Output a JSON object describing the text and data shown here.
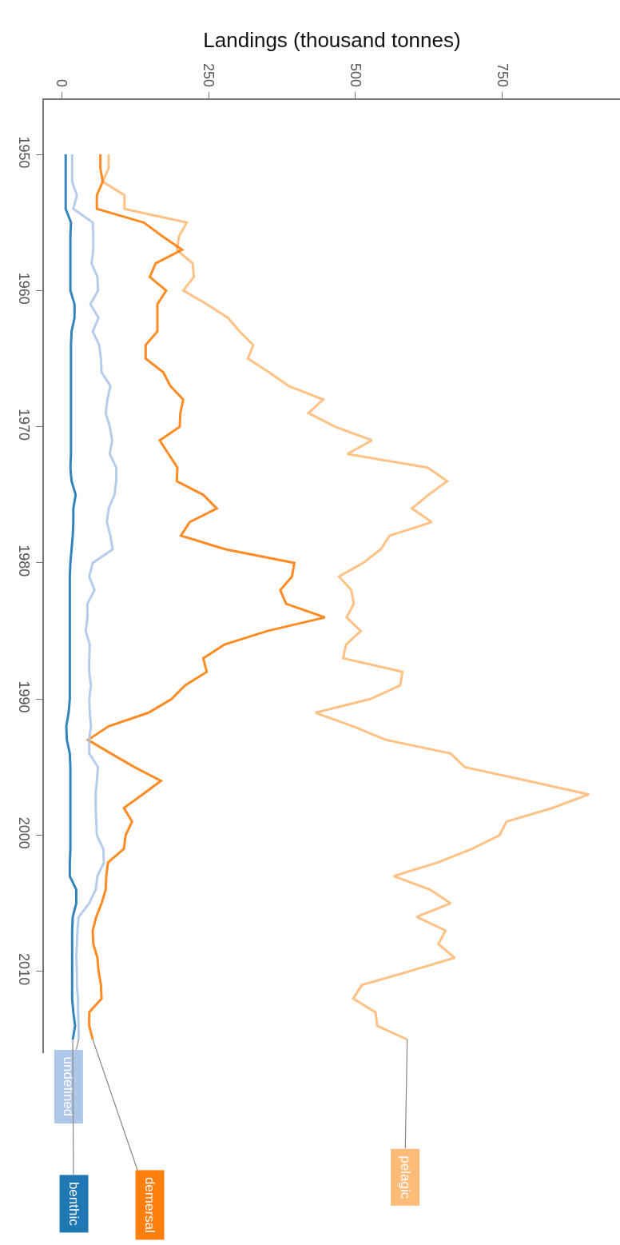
{
  "chart_data": {
    "type": "line",
    "ylabel": "Landings (thousand tonnes)",
    "x": [
      1950,
      1951,
      1952,
      1953,
      1954,
      1955,
      1956,
      1957,
      1958,
      1959,
      1960,
      1961,
      1962,
      1963,
      1964,
      1965,
      1966,
      1967,
      1968,
      1969,
      1970,
      1971,
      1972,
      1973,
      1974,
      1975,
      1976,
      1977,
      1978,
      1979,
      1980,
      1981,
      1982,
      1983,
      1984,
      1985,
      1986,
      1987,
      1988,
      1989,
      1990,
      1991,
      1992,
      1993,
      1994,
      1995,
      1996,
      1997,
      1998,
      1999,
      2000,
      2001,
      2002,
      2003,
      2004,
      2005,
      2006,
      2007,
      2008,
      2009,
      2010,
      2011,
      2012,
      2013,
      2014,
      2015
    ],
    "orientation": "horizontal",
    "ylim": [
      2016,
      1946
    ],
    "yticks": [
      1950,
      1960,
      1970,
      1980,
      1990,
      2000,
      2010
    ],
    "xlim": [
      -30,
      950
    ],
    "xticks": [
      0,
      250,
      500,
      750
    ],
    "legend": false,
    "marker": "none",
    "line_style": "solid",
    "series": [
      {
        "name": "pelagic",
        "color": "#ffbb78",
        "values": [
          80,
          80,
          70,
          107,
          107,
          213,
          200,
          196,
          223,
          225,
          207,
          247,
          283,
          303,
          326,
          317,
          353,
          386,
          445,
          420,
          465,
          528,
          486,
          623,
          656,
          624,
          596,
          630,
          558,
          543,
          513,
          472,
          493,
          497,
          485,
          509,
          484,
          479,
          580,
          576,
          525,
          432,
          496,
          552,
          662,
          686,
          793,
          897,
          835,
          757,
          745,
          698,
          640,
          565,
          627,
          662,
          604,
          653,
          641,
          669,
          591,
          511,
          496,
          534,
          537,
          588
        ]
      },
      {
        "name": "demersal",
        "color": "#ff7f0e",
        "values": [
          66,
          66,
          70,
          60,
          60,
          140,
          171,
          205,
          160,
          150,
          178,
          163,
          163,
          163,
          143,
          143,
          173,
          185,
          207,
          202,
          201,
          167,
          182,
          197,
          196,
          241,
          264,
          218,
          203,
          279,
          396,
          392,
          372,
          382,
          448,
          350,
          277,
          241,
          247,
          210,
          187,
          148,
          80,
          45,
          84,
          124,
          169,
          138,
          106,
          120,
          109,
          106,
          79,
          76,
          75,
          68,
          59,
          53,
          54,
          61,
          63,
          67,
          68,
          47,
          47,
          53
        ]
      },
      {
        "name": "undefined",
        "color": "#aec7e8",
        "values": [
          18,
          18,
          18,
          26,
          20,
          53,
          54,
          54,
          51,
          61,
          62,
          49,
          63,
          53,
          64,
          67,
          68,
          83,
          78,
          75,
          82,
          86,
          82,
          93,
          93,
          90,
          80,
          77,
          83,
          87,
          53,
          47,
          56,
          44,
          44,
          41,
          48,
          47,
          47,
          50,
          47,
          48,
          50,
          47,
          47,
          62,
          60,
          58,
          58,
          59,
          60,
          71,
          72,
          61,
          58,
          47,
          29,
          27,
          26,
          25,
          26,
          26,
          28,
          28,
          29,
          29
        ]
      },
      {
        "name": "benthic",
        "color": "#1f77b4",
        "values": [
          7,
          7,
          7,
          7,
          7,
          16,
          15,
          15,
          15,
          15,
          15,
          22,
          22,
          17,
          16,
          16,
          16,
          16,
          16,
          16,
          16,
          16,
          16,
          15,
          17,
          24,
          20,
          20,
          19,
          17,
          15,
          14,
          14,
          14,
          14,
          14,
          14,
          14,
          14,
          14,
          14,
          12,
          8,
          9,
          14,
          15,
          15,
          15,
          15,
          15,
          15,
          15,
          14,
          14,
          25,
          25,
          19,
          18,
          18,
          18,
          18,
          18,
          18,
          20,
          23,
          19
        ]
      }
    ]
  }
}
